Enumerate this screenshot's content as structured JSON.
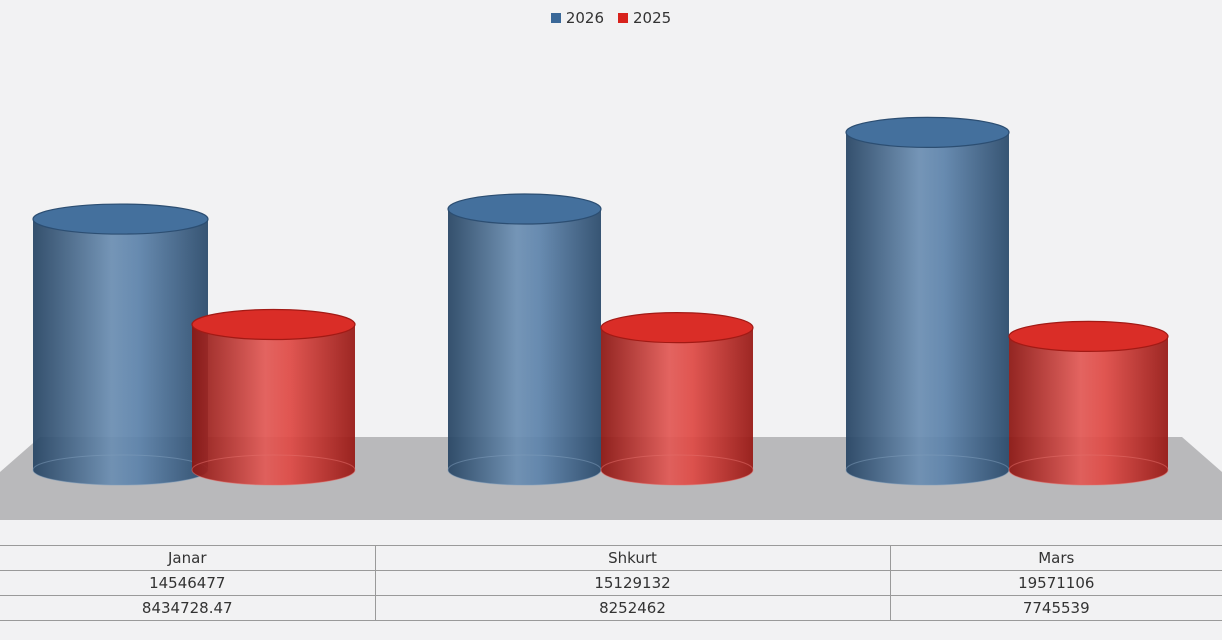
{
  "chart_data": {
    "type": "bar",
    "style": "3d-cylinder",
    "categories": [
      "Janar",
      "Shkurt",
      "Mars"
    ],
    "series": [
      {
        "name": "2026",
        "color": "#3a6898",
        "values": [
          14546477,
          15129132,
          19571106
        ],
        "table_labels": [
          "14546477",
          "15129132",
          "19571106"
        ]
      },
      {
        "name": "2025",
        "color": "#d8221c",
        "values": [
          8434728.47,
          8252462,
          7745539
        ],
        "table_labels": [
          "8434728.47",
          "8252462",
          "7745539"
        ]
      }
    ],
    "ylim": [
      0,
      20000000
    ],
    "legend_position": "top",
    "grid": false,
    "data_table": true
  }
}
